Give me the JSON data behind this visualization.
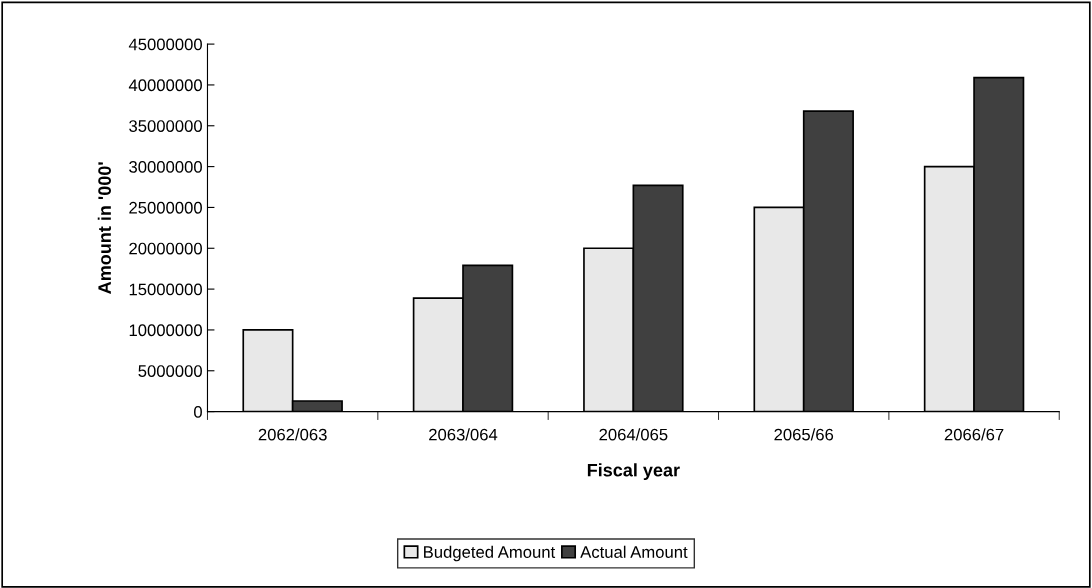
{
  "chart_data": {
    "type": "bar",
    "xlabel": "Fiscal year",
    "ylabel": "Amount in '000'",
    "categories": [
      "2062/063",
      "2063/064",
      "2064/065",
      "2065/66",
      "2066/67"
    ],
    "series": [
      {
        "name": "Budgeted Amount",
        "color": "#e8e8e8",
        "values": [
          10000000,
          13900000,
          20000000,
          25000000,
          30000000
        ]
      },
      {
        "name": "Actual Amount",
        "color": "#404040",
        "values": [
          1300000,
          17900000,
          27700000,
          36800000,
          40900000
        ]
      }
    ],
    "ylim": [
      0,
      45000000
    ],
    "yticks": [
      0,
      5000000,
      10000000,
      15000000,
      20000000,
      25000000,
      30000000,
      35000000,
      40000000,
      45000000
    ],
    "grid": false,
    "legend": "bottom"
  }
}
